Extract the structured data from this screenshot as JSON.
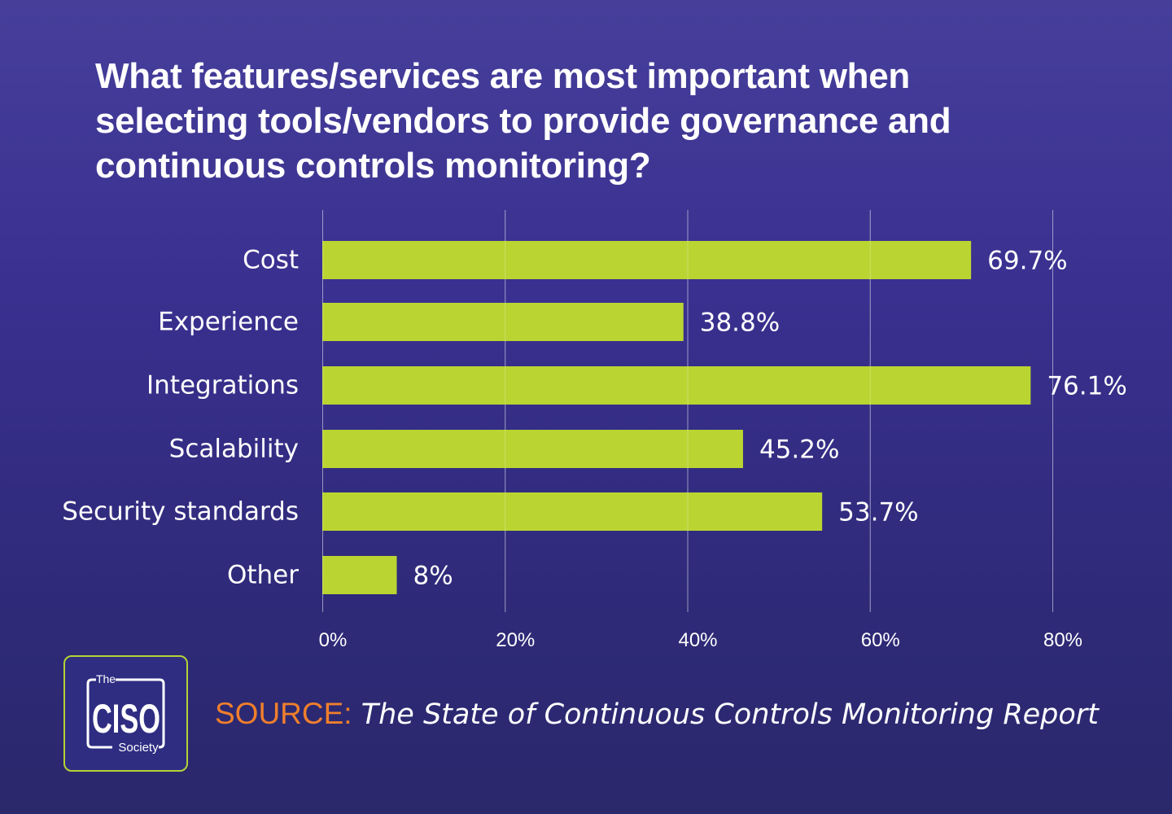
{
  "chart_data": {
    "type": "bar",
    "orientation": "horizontal",
    "title": "What features/services are most important when selecting tools/vendors to provide governance and continuous controls monitoring?",
    "title_lines": [
      "What features/services are most important when",
      "selecting tools/vendors to provide governance and",
      "continuous controls monitoring?"
    ],
    "categories": [
      "Cost",
      "Experience",
      "Integrations",
      "Scalability",
      "Security standards",
      "Other"
    ],
    "values": [
      69.7,
      38.8,
      76.1,
      45.2,
      53.7,
      8
    ],
    "value_labels": [
      "69.7%",
      "38.8%",
      "76.1%",
      "45.2%",
      "53.7%",
      "8%"
    ],
    "xlabel": "",
    "ylabel": "",
    "xlim": [
      0,
      80
    ],
    "xticks": [
      0,
      20,
      40,
      60,
      80
    ],
    "xtick_labels": [
      "0%",
      "20%",
      "40%",
      "60%",
      "80%"
    ],
    "grid": "vertical",
    "legend": "none",
    "bar_color": "#bad532"
  },
  "source": {
    "key": "SOURCE:",
    "value": "The State of Continuous Controls Monitoring Report"
  },
  "logo": {
    "top": "The",
    "main": "CISO",
    "bottom": "Society"
  },
  "colors": {
    "background_top": "#463f9a",
    "background_bottom": "#2b286c",
    "accent_orange": "#f07f2c",
    "logo_border": "#b5d334"
  }
}
